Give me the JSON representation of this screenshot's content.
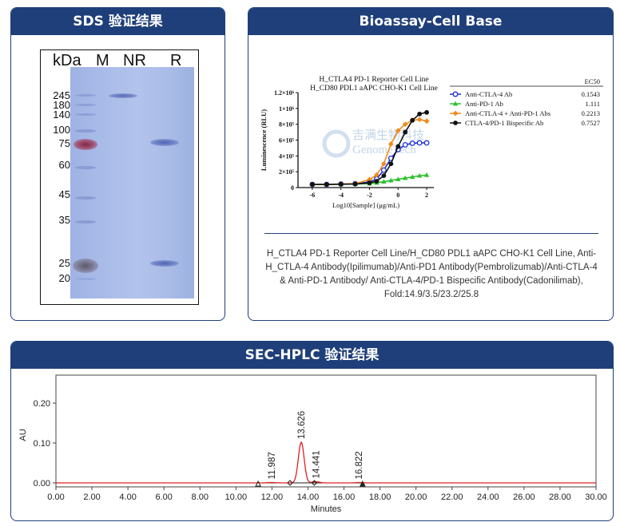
{
  "sds": {
    "title": "SDS 验证结果",
    "unit_label": "kDa",
    "lanes": [
      "M",
      "NR",
      "R"
    ],
    "markers": [
      "245",
      "180",
      "140",
      "100",
      "75",
      "60",
      "45",
      "35",
      "25",
      "20"
    ]
  },
  "bioassay": {
    "title": "Bioassay-Cell Base",
    "caption": "H_CTLA4 PD-1 Reporter Cell Line/H_CD80 PDL1 aAPC CHO-K1 Cell Line, Anti-H_CTLA-4 Antibody(Ipilimumab)/Anti-PD1 Antibody(Pembrolizumab)/Anti-CTLA-4 & Anti-PD-1 Antibody/ Anti-CTLA-4/PD-1 Bispecific Antibody(Cadonilimab), Fold:14.9/3.5/23.2/25.8",
    "watermark_cn": "吉满生物科技",
    "watermark_en": "GenomeTech",
    "colors": {
      "ctla4": "#1f2fd6",
      "pd1": "#2fc02f",
      "combo": "#f08a1c",
      "bispecific": "#111111"
    }
  },
  "chart_data": [
    {
      "type": "line",
      "title": "H_CTLA4 PD-1 Reporter Cell Line\nH_CD80 PDL1 aAPC CHO-K1 Cell Line",
      "xlabel": "Log10[Sample] (μg/mL)",
      "ylabel": "Luminescence (RLU)",
      "xlim": [
        -7,
        2.5
      ],
      "ylim": [
        0,
        1200000
      ],
      "x_ticks": [
        "-6",
        "-4",
        "-2",
        "0",
        "2"
      ],
      "y_ticks": [
        "0",
        "2×10⁵",
        "4×10⁵",
        "6×10⁵",
        "8×10⁵",
        "1×10⁶",
        "1.2×10⁶"
      ],
      "legend_header": "EC50",
      "legend_position": "top-right",
      "x": [
        -6,
        -5,
        -4,
        -3,
        -2,
        -1.5,
        -1,
        -0.5,
        0,
        0.5,
        1,
        1.5,
        2
      ],
      "series": [
        {
          "name": "Anti-CTLA-4 Ab",
          "ec50": "0.1543",
          "marker": "circle-open",
          "values": [
            40000,
            40000,
            45000,
            50000,
            70000,
            110000,
            220000,
            370000,
            480000,
            540000,
            560000,
            565000,
            565000
          ]
        },
        {
          "name": "Anti-PD-1 Ab",
          "ec50": "1.111",
          "marker": "triangle",
          "values": [
            40000,
            40000,
            42000,
            44000,
            50000,
            60000,
            75000,
            90000,
            105000,
            120000,
            135000,
            150000,
            158000
          ]
        },
        {
          "name": "Anti-CTLA-4 + Anti-PD-1 Abs",
          "ec50": "0.2213",
          "marker": "diamond",
          "values": [
            40000,
            40000,
            45000,
            50000,
            100000,
            160000,
            300000,
            550000,
            720000,
            800000,
            850000,
            860000,
            840000
          ]
        },
        {
          "name": "CTLA-4/PD-1 Bispecific Ab",
          "ec50": "0.7527",
          "marker": "circle-filled",
          "values": [
            40000,
            40000,
            42000,
            45000,
            60000,
            80000,
            150000,
            300000,
            520000,
            700000,
            850000,
            930000,
            950000
          ]
        }
      ]
    },
    {
      "type": "line",
      "title": "SEC-HPLC 验证结果",
      "xlabel": "Minutes",
      "ylabel": "AU",
      "xlim": [
        0,
        30
      ],
      "ylim": [
        -0.01,
        0.27
      ],
      "x_ticks": [
        "0.00",
        "2.00",
        "4.00",
        "6.00",
        "8.00",
        "10.00",
        "12.00",
        "14.00",
        "16.00",
        "18.00",
        "20.00",
        "22.00",
        "24.00",
        "26.00",
        "28.00",
        "30.00"
      ],
      "y_ticks": [
        "0.00",
        "0.10",
        "0.20"
      ],
      "peaks": [
        {
          "label": "11.987",
          "x": 11.987,
          "y": 0.001
        },
        {
          "label": "13.626",
          "x": 13.626,
          "y": 0.102
        },
        {
          "label": "14.441",
          "x": 14.441,
          "y": 0.003
        },
        {
          "label": "16.822",
          "x": 16.822,
          "y": 0.001
        }
      ]
    }
  ]
}
